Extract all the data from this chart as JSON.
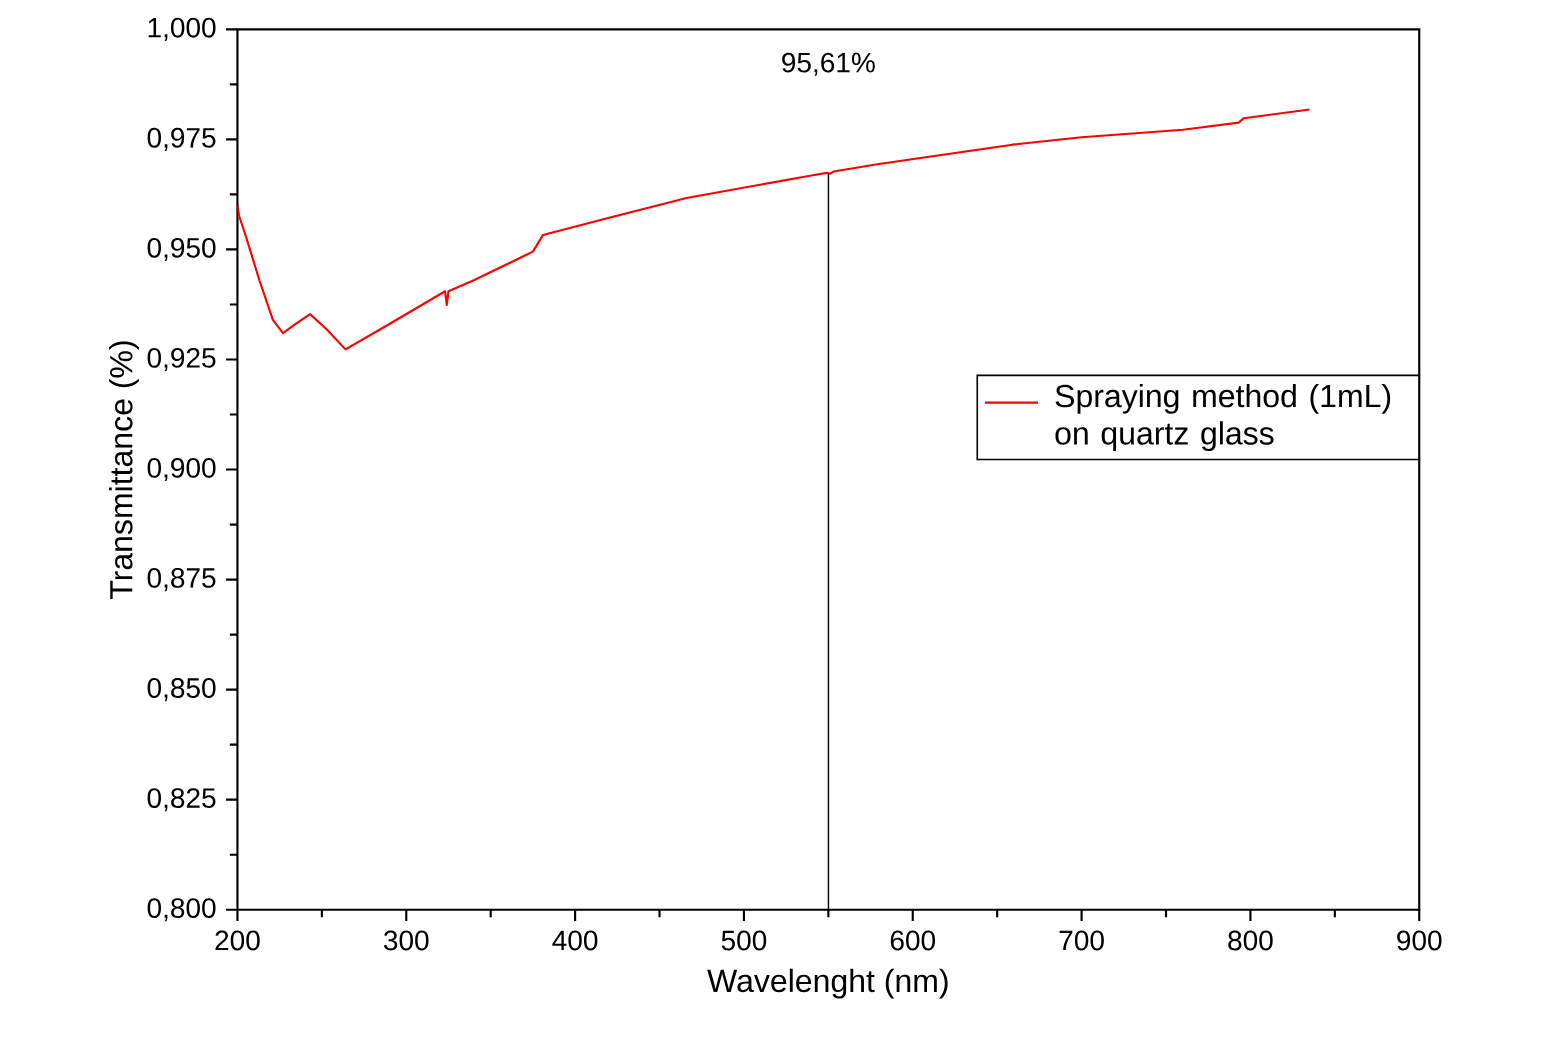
{
  "chart_data": {
    "type": "line",
    "xlabel": "Wavelenght (nm)",
    "ylabel": "Transmittance (%)",
    "xlim": [
      200,
      900
    ],
    "xticks": [
      200,
      300,
      400,
      500,
      600,
      700,
      800,
      900
    ],
    "ylim": [
      0.8,
      1.0
    ],
    "yticks": [
      {
        "value": 0.8,
        "label": "0,800"
      },
      {
        "value": 0.825,
        "label": "0,825"
      },
      {
        "value": 0.85,
        "label": "0,850"
      },
      {
        "value": 0.875,
        "label": "0,875"
      },
      {
        "value": 0.9,
        "label": "0,900"
      },
      {
        "value": 0.925,
        "label": "0,925"
      },
      {
        "value": 0.95,
        "label": "0,950"
      },
      {
        "value": 0.975,
        "label": "0,975"
      },
      {
        "value": 1.0,
        "label": "1,000"
      }
    ],
    "series": [
      {
        "name": "Spraying method (1mL) on quartz glass",
        "color": "#ff0000",
        "x": [
          200,
          201,
          205,
          213,
          221,
          227,
          233,
          243,
          253,
          264,
          288,
          323,
          324,
          325,
          340,
          375,
          381,
          419,
          466,
          540,
          549,
          551,
          553,
          580,
          659,
          700,
          760,
          793,
          796,
          835
        ],
        "values": [
          0.96,
          0.9576,
          0.953,
          0.943,
          0.934,
          0.931,
          0.9327,
          0.9353,
          0.9318,
          0.9273,
          0.9326,
          0.9405,
          0.9374,
          0.9405,
          0.943,
          0.9495,
          0.9533,
          0.9571,
          0.9617,
          0.9668,
          0.9674,
          0.9672,
          0.9677,
          0.9694,
          0.9738,
          0.9755,
          0.9772,
          0.9788,
          0.9798,
          0.9818
        ]
      }
    ],
    "ref_lines": [
      {
        "axis": "x",
        "value": 550,
        "color": "#000000"
      }
    ],
    "annotations": [
      "95,61%"
    ],
    "legend": "right",
    "grid": false,
    "marker": "none",
    "line_style": "solid"
  }
}
